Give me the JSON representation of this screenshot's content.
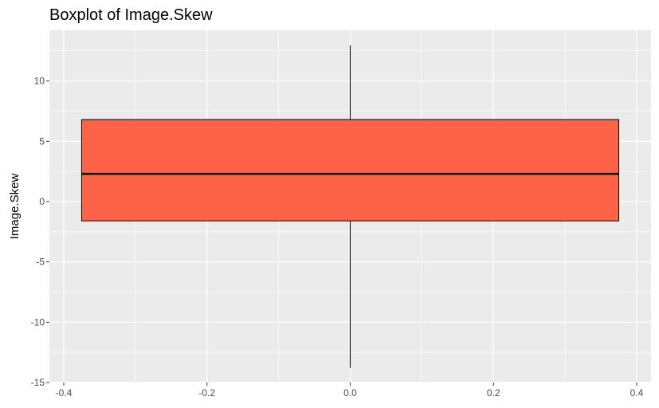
{
  "chart_data": {
    "type": "boxplot",
    "title": "Boxplot of Image.Skew",
    "xlabel": "",
    "ylabel": "Image.Skew",
    "x_ticks": [
      -0.4,
      -0.2,
      0.0,
      0.2,
      0.4
    ],
    "x_tick_labels": [
      "-0.4",
      "-0.2",
      "0.0",
      "0.2",
      "0.4"
    ],
    "y_ticks": [
      -15,
      -10,
      -5,
      0,
      5,
      10
    ],
    "y_tick_labels": [
      "-15",
      "-10",
      "-5",
      "0",
      "5",
      "10"
    ],
    "xlim": [
      -0.42,
      0.42
    ],
    "ylim": [
      -15.0,
      14.2
    ],
    "grid": true,
    "box": {
      "x_min": -0.375,
      "x_max": 0.375,
      "x_center": 0.0,
      "whisker_low": -13.8,
      "q1": -1.6,
      "median": 2.3,
      "q3": 6.8,
      "whisker_high": 12.95
    },
    "colors": {
      "box_fill": "#FF6347",
      "panel_background": "#EBEBEB",
      "grid": "#FFFFFF",
      "line": "#000000"
    }
  }
}
